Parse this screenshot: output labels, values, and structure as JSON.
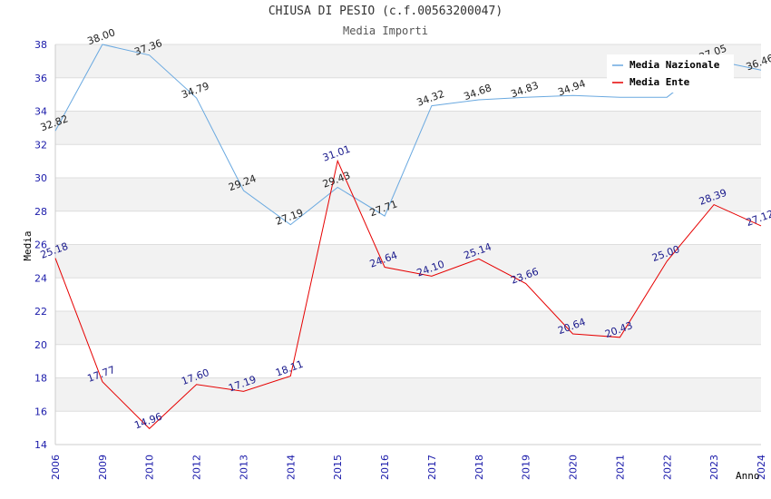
{
  "chart_data": {
    "type": "line",
    "title": "CHIUSA DI PESIO (c.f.00563200047)",
    "subtitle": "Media Importi",
    "ylabel": "Media",
    "xlabel": "Anno",
    "categories": [
      "2006",
      "2009",
      "2010",
      "2012",
      "2013",
      "2014",
      "2015",
      "2016",
      "2017",
      "2018",
      "2019",
      "2020",
      "2021",
      "2022",
      "2023",
      "2024"
    ],
    "ylim": [
      14,
      38
    ],
    "yticks": [
      14,
      16,
      18,
      20,
      22,
      24,
      26,
      28,
      30,
      32,
      34,
      36,
      38
    ],
    "legend_position": "top-right",
    "series": [
      {
        "name": "Media Nazionale",
        "color": "#6aa9e0",
        "values": [
          32.82,
          38.0,
          37.36,
          34.79,
          29.24,
          27.19,
          29.43,
          27.71,
          34.32,
          34.68,
          34.83,
          34.94,
          34.83,
          34.83,
          37.05,
          36.46
        ],
        "labels": [
          "32.82",
          "38.00",
          "37.36",
          "34.79",
          "29.24",
          "27.19",
          "29.43",
          "27.71",
          "34.32",
          "34.68",
          "34.83",
          "34.94",
          "",
          "",
          "37.05",
          "36.46"
        ]
      },
      {
        "name": "Media Ente",
        "color": "#e60000",
        "values": [
          25.18,
          17.77,
          14.96,
          17.6,
          17.19,
          18.11,
          31.01,
          24.64,
          24.1,
          25.14,
          23.66,
          20.64,
          20.43,
          25.0,
          28.39,
          27.12
        ],
        "labels": [
          "25.18",
          "17.77",
          "14.96",
          "17.60",
          "17.19",
          "18.11",
          "31.01",
          "24.64",
          "24.10",
          "25.14",
          "23.66",
          "20.64",
          "20.43",
          "25.00",
          "28.39",
          "27.12"
        ]
      }
    ]
  }
}
